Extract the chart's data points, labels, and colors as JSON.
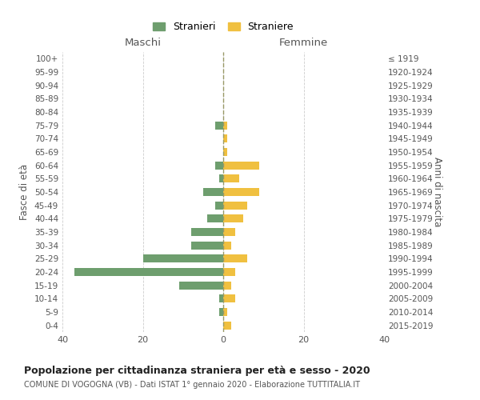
{
  "age_groups": [
    "100+",
    "95-99",
    "90-94",
    "85-89",
    "80-84",
    "75-79",
    "70-74",
    "65-69",
    "60-64",
    "55-59",
    "50-54",
    "45-49",
    "40-44",
    "35-39",
    "30-34",
    "25-29",
    "20-24",
    "15-19",
    "10-14",
    "5-9",
    "0-4"
  ],
  "birth_years": [
    "≤ 1919",
    "1920-1924",
    "1925-1929",
    "1930-1934",
    "1935-1939",
    "1940-1944",
    "1945-1949",
    "1950-1954",
    "1955-1959",
    "1960-1964",
    "1965-1969",
    "1970-1974",
    "1975-1979",
    "1980-1984",
    "1985-1989",
    "1990-1994",
    "1995-1999",
    "2000-2004",
    "2005-2009",
    "2010-2014",
    "2015-2019"
  ],
  "stranieri": [
    0,
    0,
    0,
    0,
    0,
    2,
    0,
    0,
    2,
    1,
    5,
    2,
    4,
    8,
    8,
    20,
    37,
    11,
    1,
    1,
    0
  ],
  "straniere": [
    0,
    0,
    0,
    0,
    0,
    1,
    1,
    1,
    9,
    4,
    9,
    6,
    5,
    3,
    2,
    6,
    3,
    2,
    3,
    1,
    2
  ],
  "color_stranieri": "#6e9e6e",
  "color_straniere": "#f0c040",
  "xlim": 40,
  "title": "Popolazione per cittadinanza straniera per età e sesso - 2020",
  "subtitle": "COMUNE DI VOGOGNA (VB) - Dati ISTAT 1° gennaio 2020 - Elaborazione TUTTITALIA.IT",
  "ylabel_left": "Fasce di età",
  "ylabel_right": "Anni di nascita",
  "xlabel_left": "Maschi",
  "xlabel_right": "Femmine",
  "legend_stranieri": "Stranieri",
  "legend_straniere": "Straniere",
  "bg_color": "#ffffff",
  "grid_color": "#cccccc"
}
